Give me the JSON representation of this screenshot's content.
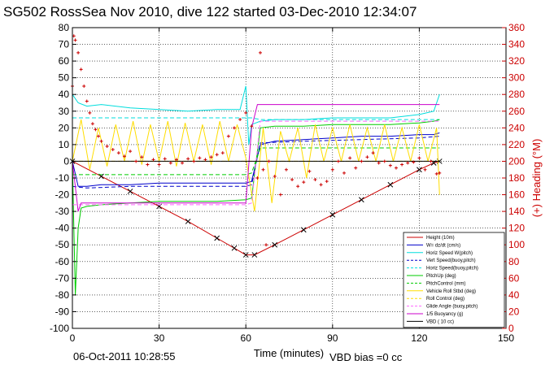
{
  "chart_data": {
    "type": "line",
    "title": "SG502 RossSea Nov 2010, dive 122 started 03-Dec-2010 12:34:07",
    "xlabel": "Time (minutes)",
    "ylabel": "",
    "y2label": "(+) Heading (°M)",
    "xlim": [
      0,
      150
    ],
    "ylim": [
      -100,
      80
    ],
    "y2lim": [
      0,
      360
    ],
    "xticks": [
      0,
      30,
      60,
      90,
      120,
      150
    ],
    "yticks": [
      -100,
      -90,
      -80,
      -70,
      -60,
      -50,
      -40,
      -30,
      -20,
      -10,
      0,
      10,
      20,
      30,
      40,
      50,
      60,
      70,
      80
    ],
    "y2ticks": [
      0,
      20,
      40,
      60,
      80,
      100,
      120,
      140,
      160,
      180,
      200,
      220,
      240,
      260,
      280,
      300,
      320,
      340,
      360
    ],
    "grid": true,
    "legend_position": "bottom-right",
    "footer_left": "06-Oct-2011 10:28:55",
    "footer_right": "VBD bias =0 cc",
    "series": [
      {
        "name": "Height (10m)",
        "color": "#cc0000",
        "style": "solid-markers",
        "x": [
          0,
          10,
          20,
          30,
          40,
          50,
          56,
          60,
          63,
          70,
          80,
          90,
          100,
          110,
          120,
          125,
          127
        ],
        "y": [
          0,
          -9,
          -18,
          -27,
          -36,
          -46,
          -52,
          -56,
          -56,
          -50,
          -41,
          -32,
          -23,
          -14,
          -5,
          -1,
          0
        ]
      },
      {
        "name": "W= dz/dt (cm/s)",
        "color": "#0000cc",
        "style": "solid",
        "x": [
          0,
          2,
          5,
          10,
          20,
          30,
          40,
          50,
          60,
          62,
          65,
          70,
          80,
          90,
          100,
          110,
          120,
          125,
          127
        ],
        "y": [
          0,
          -15,
          -15,
          -14,
          -14,
          -13,
          -13,
          -13,
          -13,
          -12,
          10,
          12,
          13,
          14,
          15,
          15,
          16,
          16,
          17
        ]
      },
      {
        "name": "Horiz Speed W(pitch)",
        "color": "#00dddd",
        "style": "solid",
        "x": [
          0,
          2,
          5,
          10,
          20,
          30,
          40,
          50,
          58,
          60,
          61,
          62,
          65,
          70,
          80,
          90,
          100,
          110,
          120,
          125,
          127
        ],
        "y": [
          40,
          35,
          33,
          34,
          32,
          31,
          30,
          31,
          31,
          45,
          10,
          22,
          24,
          25,
          25,
          26,
          26,
          26,
          28,
          30,
          40
        ]
      },
      {
        "name": "Vert Speed(buoy,pitch)",
        "color": "#0000cc",
        "style": "dashed",
        "x": [
          0,
          5,
          20,
          40,
          60,
          62,
          65,
          80,
          100,
          120,
          127
        ],
        "y": [
          -15,
          -16,
          -15,
          -15,
          -15,
          -14,
          11,
          12,
          13,
          14,
          15
        ]
      },
      {
        "name": "Horiz Speed(buoy,pitch)",
        "color": "#00dddd",
        "style": "dashed",
        "x": [
          0,
          5,
          20,
          40,
          60,
          62,
          65,
          80,
          100,
          120,
          127
        ],
        "y": [
          26,
          26,
          26,
          26,
          26,
          26,
          25,
          25,
          25,
          25,
          25
        ]
      },
      {
        "name": "PitchUp (deg)",
        "color": "#00cc00",
        "style": "solid",
        "x": [
          0,
          1,
          2,
          3,
          5,
          10,
          20,
          30,
          40,
          50,
          60,
          62,
          65,
          70,
          80,
          90,
          100,
          110,
          120,
          125,
          127
        ],
        "y": [
          0,
          -80,
          -40,
          -28,
          -27,
          -26,
          -25,
          -24,
          -24,
          -24,
          -23,
          -22,
          20,
          21,
          21,
          22,
          22,
          22,
          23,
          24,
          25
        ]
      },
      {
        "name": "PitchControl (mm)",
        "color": "#00cc00",
        "style": "dashed",
        "x": [
          0,
          5,
          20,
          40,
          60,
          62,
          65,
          80,
          100,
          120,
          127
        ],
        "y": [
          -8,
          -8,
          -8,
          -8,
          -8,
          -7,
          8,
          8,
          8,
          8,
          8
        ]
      },
      {
        "name": "Vehicle Roll Stbd (deg)",
        "color": "#ffdd00",
        "style": "solid",
        "x": [
          0,
          3,
          6,
          9,
          12,
          15,
          18,
          21,
          24,
          27,
          30,
          33,
          36,
          39,
          42,
          45,
          48,
          51,
          54,
          57,
          60,
          63,
          66,
          69,
          72,
          75,
          78,
          81,
          84,
          87,
          90,
          93,
          96,
          99,
          102,
          105,
          108,
          111,
          114,
          117,
          120,
          123,
          126,
          127
        ],
        "y": [
          0,
          25,
          -5,
          20,
          -3,
          22,
          0,
          24,
          -2,
          22,
          0,
          24,
          -3,
          23,
          0,
          22,
          -2,
          24,
          0,
          22,
          2,
          -30,
          20,
          -25,
          18,
          0,
          20,
          -10,
          22,
          0,
          20,
          0,
          22,
          0,
          20,
          0,
          22,
          0,
          20,
          0,
          22,
          0,
          20,
          -20
        ]
      },
      {
        "name": "Roll Control (deg)",
        "color": "#ffdd00",
        "style": "dashed",
        "x": [
          0,
          20,
          40,
          60,
          65,
          80,
          100,
          120,
          127
        ],
        "y": [
          0,
          0,
          0,
          0,
          0,
          0,
          0,
          0,
          0
        ]
      },
      {
        "name": "Glide Angle (buoy,pitch)",
        "color": "#ff66ff",
        "style": "dashed",
        "x": [
          0,
          5,
          20,
          40,
          60,
          62,
          65,
          80,
          100,
          120,
          127
        ],
        "y": [
          -26,
          -26,
          -26,
          -26,
          -26,
          -25,
          24,
          24,
          24,
          24,
          24
        ]
      },
      {
        "name": "1/5 Buoyancy (g)",
        "color": "#cc00cc",
        "style": "solid",
        "x": [
          0,
          2,
          3,
          60,
          62,
          64,
          127
        ],
        "y": [
          0,
          -30,
          -25,
          -25,
          20,
          34,
          34
        ]
      },
      {
        "name": "VBD ( 10 cc)",
        "color": "#000000",
        "style": "solid",
        "x": [
          0,
          127
        ],
        "y": [
          0,
          0
        ]
      },
      {
        "name": "(+) Heading (°M)",
        "color": "#cc0000",
        "style": "markers",
        "axis": "right",
        "x": [
          0,
          0.5,
          1,
          2,
          3,
          4,
          5,
          6,
          7,
          8,
          9,
          10,
          12,
          14,
          16,
          18,
          20,
          22,
          24,
          26,
          28,
          30,
          32,
          34,
          36,
          38,
          40,
          42,
          44,
          46,
          48,
          50,
          52,
          54,
          56,
          58,
          60,
          62,
          64,
          65,
          66,
          67,
          68,
          70,
          72,
          74,
          76,
          78,
          80,
          82,
          84,
          86,
          88,
          90,
          92,
          94,
          96,
          98,
          100,
          102,
          104,
          106,
          108,
          110,
          112,
          114,
          116,
          118,
          120,
          122,
          124,
          126,
          127
        ],
        "y": [
          290,
          350,
          345,
          330,
          310,
          290,
          272,
          258,
          245,
          238,
          230,
          224,
          218,
          214,
          210,
          206,
          212,
          200,
          205,
          196,
          202,
          196,
          203,
          198,
          202,
          198,
          203,
          200,
          204,
          202,
          205,
          208,
          210,
          230,
          240,
          250,
          258,
          242,
          180,
          330,
          190,
          100,
          200,
          182,
          160,
          190,
          178,
          170,
          175,
          188,
          178,
          172,
          176,
          190,
          200,
          186,
          204,
          192,
          200,
          205,
          210,
          198,
          200,
          195,
          192,
          196,
          198,
          199,
          204,
          190,
          200,
          185,
          186
        ]
      }
    ]
  }
}
